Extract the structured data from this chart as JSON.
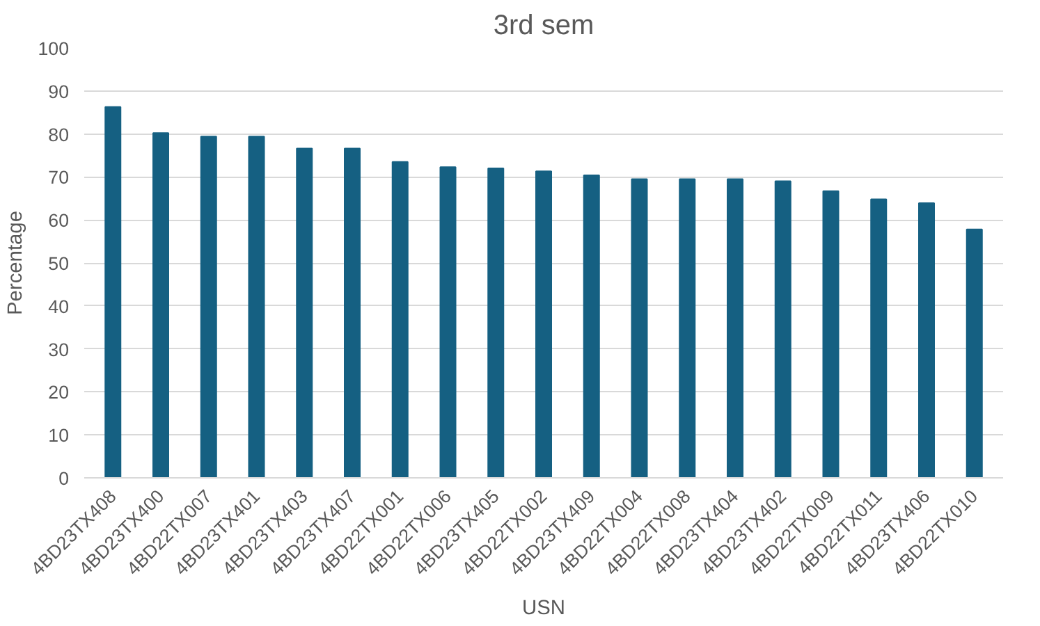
{
  "chart_data": {
    "type": "bar",
    "title": "3rd sem",
    "xlabel": "USN",
    "ylabel": "Percentage",
    "categories": [
      "4BD23TX408",
      "4BD23TX400",
      "4BD22TX007",
      "4BD23TX401",
      "4BD23TX403",
      "4BD23TX407",
      "4BD22TX001",
      "4BD22TX006",
      "4BD23TX405",
      "4BD22TX002",
      "4BD23TX409",
      "4BD22TX004",
      "4BD22TX008",
      "4BD23TX404",
      "4BD23TX402",
      "4BD22TX009",
      "4BD22TX011",
      "4BD23TX406",
      "4BD22TX010"
    ],
    "values": [
      86.3,
      80.2,
      79.4,
      79.4,
      76.6,
      76.6,
      73.5,
      72.3,
      72.0,
      71.3,
      70.4,
      69.5,
      69.5,
      69.5,
      69.0,
      66.7,
      64.8,
      63.9,
      57.8
    ],
    "color": "#156082",
    "ylim": [
      0,
      100
    ],
    "yticks": [
      0,
      10,
      20,
      30,
      40,
      50,
      60,
      70,
      80,
      90,
      100
    ],
    "grid": "y"
  }
}
